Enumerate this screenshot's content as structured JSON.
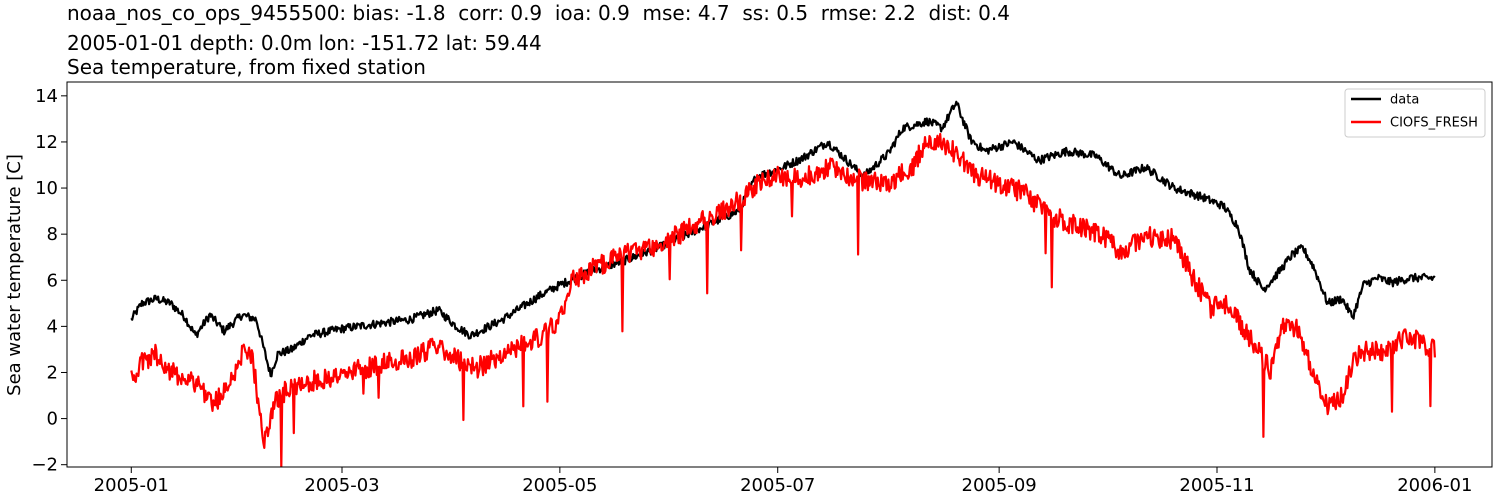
{
  "titles": {
    "line1": "noaa_nos_co_ops_9455500: bias: -1.8  corr: 0.9  ioa: 0.9  mse: 4.7  ss: 0.5  rmse: 2.2  dist: 0.4",
    "line2": "2005-01-01 depth: 0.0m lon: -151.72 lat: 59.44",
    "line3": "Sea temperature, from fixed station"
  },
  "chart_data": {
    "type": "line",
    "ylabel": "Sea water temperature [C]",
    "xlabel": "",
    "ylim": [
      -2.1,
      14.6
    ],
    "xlim": [
      "2004-12-14",
      "2006-01-17"
    ],
    "yticks": [
      -2,
      0,
      2,
      4,
      6,
      8,
      10,
      12,
      14
    ],
    "xticks": [
      "2005-01",
      "2005-03",
      "2005-05",
      "2005-07",
      "2005-09",
      "2005-11",
      "2006-01"
    ],
    "legend_position": "top-right",
    "grid": false,
    "series": [
      {
        "name": "data",
        "color": "#000000",
        "points": [
          [
            "2005-01-01",
            4.3
          ],
          [
            "2005-01-04",
            5.0
          ],
          [
            "2005-01-08",
            5.2
          ],
          [
            "2005-01-12",
            5.0
          ],
          [
            "2005-01-16",
            4.4
          ],
          [
            "2005-01-19",
            3.6
          ],
          [
            "2005-01-23",
            4.5
          ],
          [
            "2005-01-27",
            3.8
          ],
          [
            "2005-02-01",
            4.5
          ],
          [
            "2005-02-05",
            4.3
          ],
          [
            "2005-02-09",
            1.9
          ],
          [
            "2005-02-11",
            2.8
          ],
          [
            "2005-02-15",
            3.0
          ],
          [
            "2005-02-20",
            3.6
          ],
          [
            "2005-03-01",
            3.9
          ],
          [
            "2005-03-10",
            4.1
          ],
          [
            "2005-03-20",
            4.3
          ],
          [
            "2005-03-28",
            4.7
          ],
          [
            "2005-04-02",
            4.0
          ],
          [
            "2005-04-06",
            3.6
          ],
          [
            "2005-04-15",
            4.3
          ],
          [
            "2005-04-25",
            5.3
          ],
          [
            "2005-05-01",
            5.8
          ],
          [
            "2005-05-10",
            6.4
          ],
          [
            "2005-05-20",
            6.9
          ],
          [
            "2005-05-30",
            7.5
          ],
          [
            "2005-06-10",
            8.3
          ],
          [
            "2005-06-20",
            9.0
          ],
          [
            "2005-06-25",
            10.5
          ],
          [
            "2005-07-01",
            10.8
          ],
          [
            "2005-07-08",
            11.3
          ],
          [
            "2005-07-15",
            12.0
          ],
          [
            "2005-07-25",
            10.5
          ],
          [
            "2005-08-01",
            11.5
          ],
          [
            "2005-08-05",
            12.6
          ],
          [
            "2005-08-12",
            12.9
          ],
          [
            "2005-08-16",
            12.6
          ],
          [
            "2005-08-20",
            13.7
          ],
          [
            "2005-08-24",
            12.1
          ],
          [
            "2005-08-28",
            11.6
          ],
          [
            "2005-09-05",
            12.0
          ],
          [
            "2005-09-12",
            11.2
          ],
          [
            "2005-09-20",
            11.6
          ],
          [
            "2005-09-28",
            11.4
          ],
          [
            "2005-10-05",
            10.5
          ],
          [
            "2005-10-12",
            10.9
          ],
          [
            "2005-10-20",
            10.0
          ],
          [
            "2005-10-28",
            9.6
          ],
          [
            "2005-11-03",
            9.2
          ],
          [
            "2005-11-07",
            8.3
          ],
          [
            "2005-11-10",
            6.5
          ],
          [
            "2005-11-14",
            5.6
          ],
          [
            "2005-11-18",
            6.3
          ],
          [
            "2005-11-22",
            7.1
          ],
          [
            "2005-11-25",
            7.4
          ],
          [
            "2005-11-28",
            6.6
          ],
          [
            "2005-12-02",
            5.0
          ],
          [
            "2005-12-06",
            5.2
          ],
          [
            "2005-12-09",
            4.4
          ],
          [
            "2005-12-12",
            5.8
          ],
          [
            "2005-12-16",
            6.1
          ],
          [
            "2005-12-20",
            5.9
          ],
          [
            "2005-12-25",
            6.1
          ],
          [
            "2006-01-01",
            6.1
          ]
        ]
      },
      {
        "name": "CIOFS_FRESH",
        "color": "#ff0000",
        "points": [
          [
            "2005-01-01",
            1.7
          ],
          [
            "2005-01-04",
            2.4
          ],
          [
            "2005-01-08",
            2.8
          ],
          [
            "2005-01-12",
            2.0
          ],
          [
            "2005-01-16",
            1.8
          ],
          [
            "2005-01-20",
            1.5
          ],
          [
            "2005-01-24",
            0.6
          ],
          [
            "2005-01-28",
            1.4
          ],
          [
            "2005-02-01",
            2.8
          ],
          [
            "2005-02-04",
            2.6
          ],
          [
            "2005-02-07",
            -1.0
          ],
          [
            "2005-02-10",
            0.6
          ],
          [
            "2005-02-14",
            1.4
          ],
          [
            "2005-02-20",
            1.6
          ],
          [
            "2005-03-01",
            1.9
          ],
          [
            "2005-03-10",
            2.3
          ],
          [
            "2005-03-20",
            2.6
          ],
          [
            "2005-03-28",
            3.2
          ],
          [
            "2005-04-02",
            2.6
          ],
          [
            "2005-04-08",
            2.2
          ],
          [
            "2005-04-15",
            2.8
          ],
          [
            "2005-04-25",
            3.5
          ],
          [
            "2005-05-01",
            4.2
          ],
          [
            "2005-05-04",
            6.0
          ],
          [
            "2005-05-10",
            6.5
          ],
          [
            "2005-05-20",
            7.2
          ],
          [
            "2005-05-30",
            7.6
          ],
          [
            "2005-06-10",
            8.6
          ],
          [
            "2005-06-20",
            9.4
          ],
          [
            "2005-06-28",
            10.5
          ],
          [
            "2005-07-08",
            10.4
          ],
          [
            "2005-07-15",
            10.9
          ],
          [
            "2005-07-25",
            10.3
          ],
          [
            "2005-08-01",
            10.2
          ],
          [
            "2005-08-08",
            11.0
          ],
          [
            "2005-08-12",
            12.2
          ],
          [
            "2005-08-16",
            12.0
          ],
          [
            "2005-08-20",
            11.5
          ],
          [
            "2005-08-25",
            10.6
          ],
          [
            "2005-09-01",
            10.2
          ],
          [
            "2005-09-08",
            9.8
          ],
          [
            "2005-09-15",
            8.8
          ],
          [
            "2005-09-22",
            8.4
          ],
          [
            "2005-09-28",
            8.1
          ],
          [
            "2005-10-05",
            7.3
          ],
          [
            "2005-10-12",
            7.9
          ],
          [
            "2005-10-20",
            7.8
          ],
          [
            "2005-10-25",
            6.2
          ],
          [
            "2005-10-30",
            4.8
          ],
          [
            "2005-11-04",
            5.0
          ],
          [
            "2005-11-08",
            4.0
          ],
          [
            "2005-11-12",
            3.0
          ],
          [
            "2005-11-16",
            2.1
          ],
          [
            "2005-11-20",
            4.2
          ],
          [
            "2005-11-24",
            3.9
          ],
          [
            "2005-11-28",
            1.8
          ],
          [
            "2005-12-02",
            0.5
          ],
          [
            "2005-12-06",
            1.0
          ],
          [
            "2005-12-10",
            2.7
          ],
          [
            "2005-12-14",
            3.0
          ],
          [
            "2005-12-18",
            2.9
          ],
          [
            "2005-12-22",
            3.4
          ],
          [
            "2005-12-26",
            3.5
          ],
          [
            "2006-01-01",
            3.0
          ]
        ]
      }
    ]
  }
}
